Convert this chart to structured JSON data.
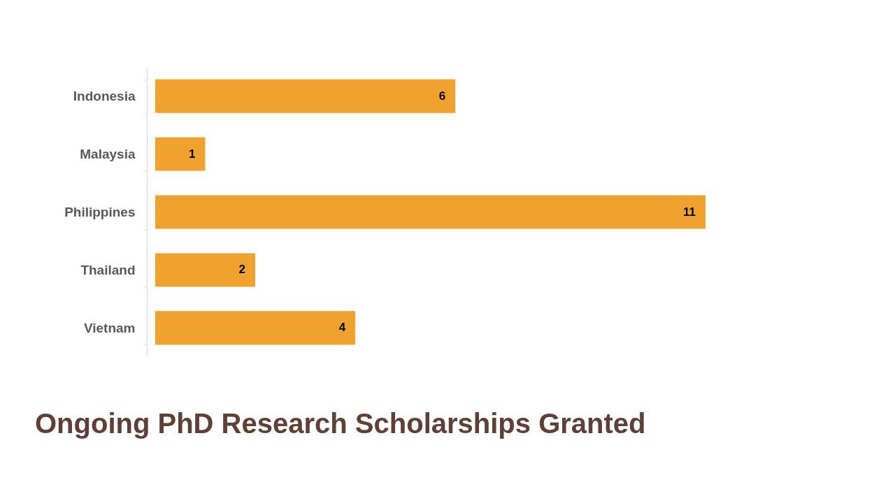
{
  "chart_data": {
    "type": "bar",
    "orientation": "horizontal",
    "title": "Ongoing PhD Research Scholarships Granted",
    "categories": [
      "Indonesia",
      "Malaysia",
      "Philippines",
      "Thailand",
      "Vietnam"
    ],
    "values": [
      6,
      1,
      11,
      2,
      4
    ],
    "color": "#f0a22e",
    "data_labels": true,
    "tick_labels": "y"
  }
}
